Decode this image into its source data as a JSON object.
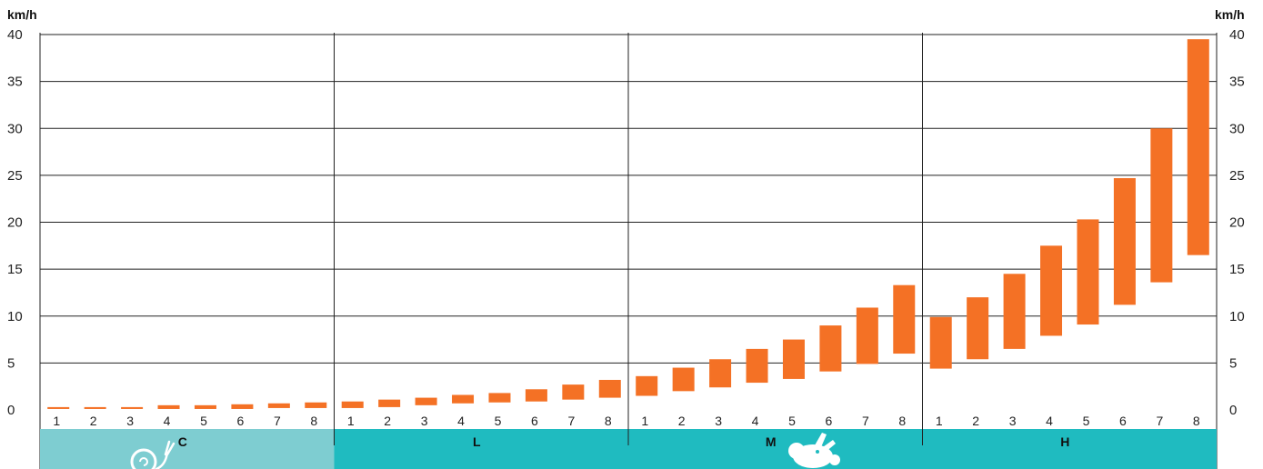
{
  "colors": {
    "bar": "#F47125",
    "band_first": "#7ECDD1",
    "band_rest": "#1FBBC0",
    "grid": "#222222",
    "icon": "#ffffff"
  },
  "chart_data": {
    "type": "bar",
    "subtype": "floating-range",
    "ylabel_left": "km/h",
    "ylabel_right": "km/h",
    "ylim": [
      0,
      40
    ],
    "yticks": [
      0,
      5,
      10,
      15,
      20,
      25,
      30,
      35,
      40
    ],
    "grid": true,
    "groups": [
      {
        "label": "C",
        "icon": "snail-icon",
        "categories": [
          "1",
          "2",
          "3",
          "4",
          "5",
          "6",
          "7",
          "8"
        ],
        "ranges": [
          [
            0.1,
            0.3
          ],
          [
            0.1,
            0.3
          ],
          [
            0.1,
            0.3
          ],
          [
            0.1,
            0.5
          ],
          [
            0.1,
            0.5
          ],
          [
            0.1,
            0.6
          ],
          [
            0.2,
            0.7
          ],
          [
            0.2,
            0.8
          ]
        ]
      },
      {
        "label": "L",
        "icon": null,
        "categories": [
          "1",
          "2",
          "3",
          "4",
          "5",
          "6",
          "7",
          "8"
        ],
        "ranges": [
          [
            0.2,
            0.9
          ],
          [
            0.3,
            1.1
          ],
          [
            0.5,
            1.3
          ],
          [
            0.7,
            1.6
          ],
          [
            0.8,
            1.8
          ],
          [
            0.9,
            2.2
          ],
          [
            1.1,
            2.7
          ],
          [
            1.3,
            3.2
          ]
        ]
      },
      {
        "label": "M",
        "icon": "rabbit-icon",
        "categories": [
          "1",
          "2",
          "3",
          "4",
          "5",
          "6",
          "7",
          "8"
        ],
        "ranges": [
          [
            1.5,
            3.6
          ],
          [
            2.0,
            4.5
          ],
          [
            2.4,
            5.4
          ],
          [
            2.9,
            6.5
          ],
          [
            3.3,
            7.5
          ],
          [
            4.1,
            9.0
          ],
          [
            4.9,
            10.9
          ],
          [
            6.0,
            13.3
          ]
        ]
      },
      {
        "label": "H",
        "icon": null,
        "categories": [
          "1",
          "2",
          "3",
          "4",
          "5",
          "6",
          "7",
          "8"
        ],
        "ranges": [
          [
            4.4,
            9.9
          ],
          [
            5.4,
            12.0
          ],
          [
            6.5,
            14.5
          ],
          [
            7.9,
            17.5
          ],
          [
            9.1,
            20.3
          ],
          [
            11.2,
            24.7
          ],
          [
            13.6,
            30.0
          ],
          [
            16.5,
            39.5
          ]
        ]
      }
    ]
  }
}
